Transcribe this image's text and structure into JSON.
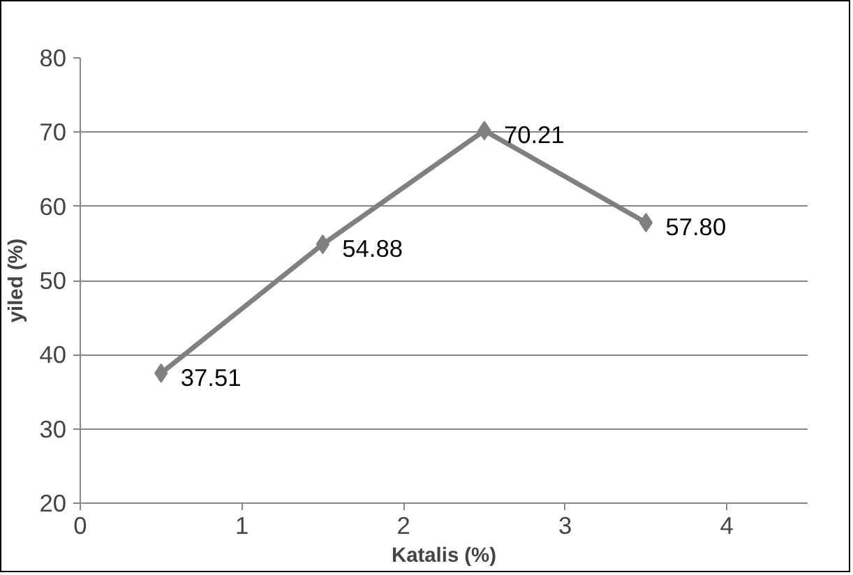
{
  "chart_data": {
    "type": "line",
    "xlabel": "Katalis (%)",
    "ylabel": "yiled (%)",
    "x": [
      0.5,
      1.5,
      2.5,
      3.5
    ],
    "series": [
      {
        "color": "#808080",
        "values": [
          37.51,
          54.88,
          70.21,
          57.8
        ],
        "value_labels": [
          "37.51",
          "54.88",
          "70.21",
          "57.80"
        ]
      }
    ],
    "xlim": [
      0,
      4.5
    ],
    "xticks": [
      0,
      1,
      2,
      3,
      4
    ],
    "ylim": [
      20,
      80
    ],
    "yticks": [
      20,
      30,
      40,
      50,
      60,
      70,
      80
    ],
    "grid": "y",
    "marker": "diamond",
    "line_style": "solid"
  }
}
